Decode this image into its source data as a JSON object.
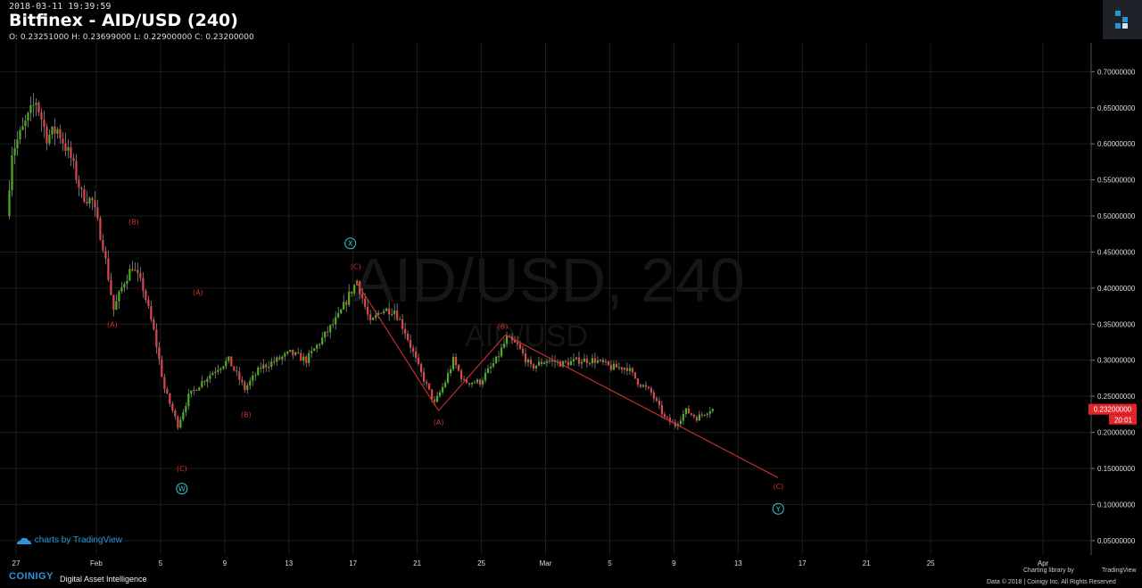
{
  "header": {
    "timestamp": "2018-03-11 19:39:59",
    "title": "Bitfinex - AID/USD (240)",
    "ohlc": "O: 0.23251000 H: 0.23699000 L: 0.22900000 C: 0.23200000"
  },
  "watermark": {
    "main": "AID/USD, 240",
    "sub": "AID/USD"
  },
  "colors": {
    "up": "#4caf1f",
    "down": "#e0454a",
    "wave": "#d03030",
    "cycle": "#38c6d8",
    "grid": "#1d1d1d",
    "price_tag": "#e0262c"
  },
  "chart_data": {
    "type": "candlestick",
    "exchange": "Bitfinex",
    "pair": "AID/USD",
    "interval": "240",
    "y_axis": {
      "range": [
        0.03,
        0.74
      ],
      "ticks": [
        "0.05000000",
        "0.10000000",
        "0.15000000",
        "0.20000000",
        "0.25000000",
        "0.30000000",
        "0.35000000",
        "0.40000000",
        "0.45000000",
        "0.50000000",
        "0.55000000",
        "0.60000000",
        "0.65000000",
        "0.70000000"
      ]
    },
    "x_axis": {
      "range": [
        "2018-01-26T00:00",
        "2018-04-04T00:00"
      ],
      "ticks": [
        {
          "label": "27",
          "date": "2018-01-27"
        },
        {
          "label": "Feb",
          "date": "2018-02-01"
        },
        {
          "label": "5",
          "date": "2018-02-05"
        },
        {
          "label": "9",
          "date": "2018-02-09"
        },
        {
          "label": "13",
          "date": "2018-02-13"
        },
        {
          "label": "17",
          "date": "2018-02-17"
        },
        {
          "label": "21",
          "date": "2018-02-21"
        },
        {
          "label": "25",
          "date": "2018-02-25"
        },
        {
          "label": "Mar",
          "date": "2018-03-01"
        },
        {
          "label": "5",
          "date": "2018-03-05"
        },
        {
          "label": "9",
          "date": "2018-03-09"
        },
        {
          "label": "13",
          "date": "2018-03-13"
        },
        {
          "label": "17",
          "date": "2018-03-17"
        },
        {
          "label": "21",
          "date": "2018-03-21"
        },
        {
          "label": "25",
          "date": "2018-03-25"
        },
        {
          "label": "Apr",
          "date": "2018-04-01"
        }
      ]
    },
    "anchors": [
      {
        "t": "2018-01-26T12:00",
        "p": 0.5
      },
      {
        "t": "2018-01-26T20:00",
        "p": 0.59
      },
      {
        "t": "2018-01-27T12:00",
        "p": 0.62
      },
      {
        "t": "2018-01-28T08:00",
        "p": 0.66
      },
      {
        "t": "2018-01-29T00:00",
        "p": 0.61
      },
      {
        "t": "2018-01-29T16:00",
        "p": 0.62
      },
      {
        "t": "2018-01-30T12:00",
        "p": 0.58
      },
      {
        "t": "2018-01-31T04:00",
        "p": 0.53
      },
      {
        "t": "2018-01-31T20:00",
        "p": 0.52
      },
      {
        "t": "2018-02-01T12:00",
        "p": 0.46
      },
      {
        "t": "2018-02-02T04:00",
        "p": 0.37
      },
      {
        "t": "2018-02-02T20:00",
        "p": 0.41
      },
      {
        "t": "2018-02-03T08:00",
        "p": 0.43
      },
      {
        "t": "2018-02-04T00:00",
        "p": 0.4
      },
      {
        "t": "2018-02-04T16:00",
        "p": 0.34
      },
      {
        "t": "2018-02-05T08:00",
        "p": 0.26
      },
      {
        "t": "2018-02-06T04:00",
        "p": 0.21
      },
      {
        "t": "2018-02-06T20:00",
        "p": 0.25
      },
      {
        "t": "2018-02-07T16:00",
        "p": 0.27
      },
      {
        "t": "2018-02-08T16:00",
        "p": 0.29
      },
      {
        "t": "2018-02-09T08:00",
        "p": 0.3
      },
      {
        "t": "2018-02-10T08:00",
        "p": 0.26
      },
      {
        "t": "2018-02-11T08:00",
        "p": 0.29
      },
      {
        "t": "2018-02-12T08:00",
        "p": 0.3
      },
      {
        "t": "2018-02-13T04:00",
        "p": 0.31
      },
      {
        "t": "2018-02-14T04:00",
        "p": 0.3
      },
      {
        "t": "2018-02-15T04:00",
        "p": 0.33
      },
      {
        "t": "2018-02-16T04:00",
        "p": 0.36
      },
      {
        "t": "2018-02-16T20:00",
        "p": 0.39
      },
      {
        "t": "2018-02-17T08:00",
        "p": 0.41
      },
      {
        "t": "2018-02-18T04:00",
        "p": 0.35
      },
      {
        "t": "2018-02-18T20:00",
        "p": 0.37
      },
      {
        "t": "2018-02-19T16:00",
        "p": 0.37
      },
      {
        "t": "2018-02-20T08:00",
        "p": 0.34
      },
      {
        "t": "2018-02-21T04:00",
        "p": 0.29
      },
      {
        "t": "2018-02-22T04:00",
        "p": 0.24
      },
      {
        "t": "2018-02-22T20:00",
        "p": 0.27
      },
      {
        "t": "2018-02-23T08:00",
        "p": 0.3
      },
      {
        "t": "2018-02-24T00:00",
        "p": 0.27
      },
      {
        "t": "2018-02-25T00:00",
        "p": 0.27
      },
      {
        "t": "2018-02-26T00:00",
        "p": 0.3
      },
      {
        "t": "2018-02-26T16:00",
        "p": 0.33
      },
      {
        "t": "2018-02-27T08:00",
        "p": 0.32
      },
      {
        "t": "2018-02-28T04:00",
        "p": 0.29
      },
      {
        "t": "2018-03-01T04:00",
        "p": 0.3
      },
      {
        "t": "2018-03-02T04:00",
        "p": 0.295
      },
      {
        "t": "2018-03-03T04:00",
        "p": 0.3
      },
      {
        "t": "2018-03-04T04:00",
        "p": 0.3
      },
      {
        "t": "2018-03-05T04:00",
        "p": 0.29
      },
      {
        "t": "2018-03-06T04:00",
        "p": 0.29
      },
      {
        "t": "2018-03-06T20:00",
        "p": 0.27
      },
      {
        "t": "2018-03-07T16:00",
        "p": 0.255
      },
      {
        "t": "2018-03-08T12:00",
        "p": 0.22
      },
      {
        "t": "2018-03-09T04:00",
        "p": 0.21
      },
      {
        "t": "2018-03-09T20:00",
        "p": 0.23
      },
      {
        "t": "2018-03-10T12:00",
        "p": 0.22
      },
      {
        "t": "2018-03-11T08:00",
        "p": 0.232
      }
    ],
    "last_price": {
      "value": "0.23200000",
      "countdown": "20:01",
      "p": 0.232
    },
    "wave_lines": [
      {
        "from": {
          "t": "2018-02-17T04:00",
          "p": 0.41
        },
        "to": {
          "t": "2018-02-22T08:00",
          "p": 0.23
        }
      },
      {
        "from": {
          "t": "2018-02-22T08:00",
          "p": 0.23
        },
        "to": {
          "t": "2018-02-26T12:00",
          "p": 0.335
        }
      },
      {
        "from": {
          "t": "2018-02-26T12:00",
          "p": 0.335
        },
        "to": {
          "t": "2018-03-15T12:00",
          "p": 0.137
        }
      }
    ],
    "wave_labels": [
      {
        "text": "(B)",
        "t": "2018-02-03T08:00",
        "p": 0.492,
        "kind": "wave"
      },
      {
        "text": "(A)",
        "t": "2018-02-02T00:00",
        "p": 0.35,
        "kind": "wave"
      },
      {
        "text": "(A)",
        "t": "2018-02-07T08:00",
        "p": 0.394,
        "kind": "wave"
      },
      {
        "text": "(B)",
        "t": "2018-02-10T08:00",
        "p": 0.225,
        "kind": "wave"
      },
      {
        "text": "(C)",
        "t": "2018-02-06T08:00",
        "p": 0.15,
        "kind": "wave"
      },
      {
        "text": "W",
        "t": "2018-02-06T08:00",
        "p": 0.122,
        "kind": "cycle"
      },
      {
        "text": "X",
        "t": "2018-02-16T20:00",
        "p": 0.462,
        "kind": "cycle"
      },
      {
        "text": "(C)",
        "t": "2018-02-17T04:00",
        "p": 0.43,
        "kind": "wave"
      },
      {
        "text": "(A)",
        "t": "2018-02-22T08:00",
        "p": 0.214,
        "kind": "wave"
      },
      {
        "text": "(B)",
        "t": "2018-02-26T08:00",
        "p": 0.347,
        "kind": "wave"
      },
      {
        "text": "(C)",
        "t": "2018-03-15T12:00",
        "p": 0.125,
        "kind": "wave"
      },
      {
        "text": "Y",
        "t": "2018-03-15T12:00",
        "p": 0.094,
        "kind": "cycle"
      }
    ]
  },
  "attribution": {
    "charts_by": "charts by TradingView"
  },
  "footer": {
    "brand": "COINIGY",
    "tagline": "Digital Asset Intelligence",
    "charting_library": "Charting library by",
    "tradingview": "TradingView",
    "copyright": "Data © 2018 | Coinigy Inc. All Rights Reserved"
  }
}
